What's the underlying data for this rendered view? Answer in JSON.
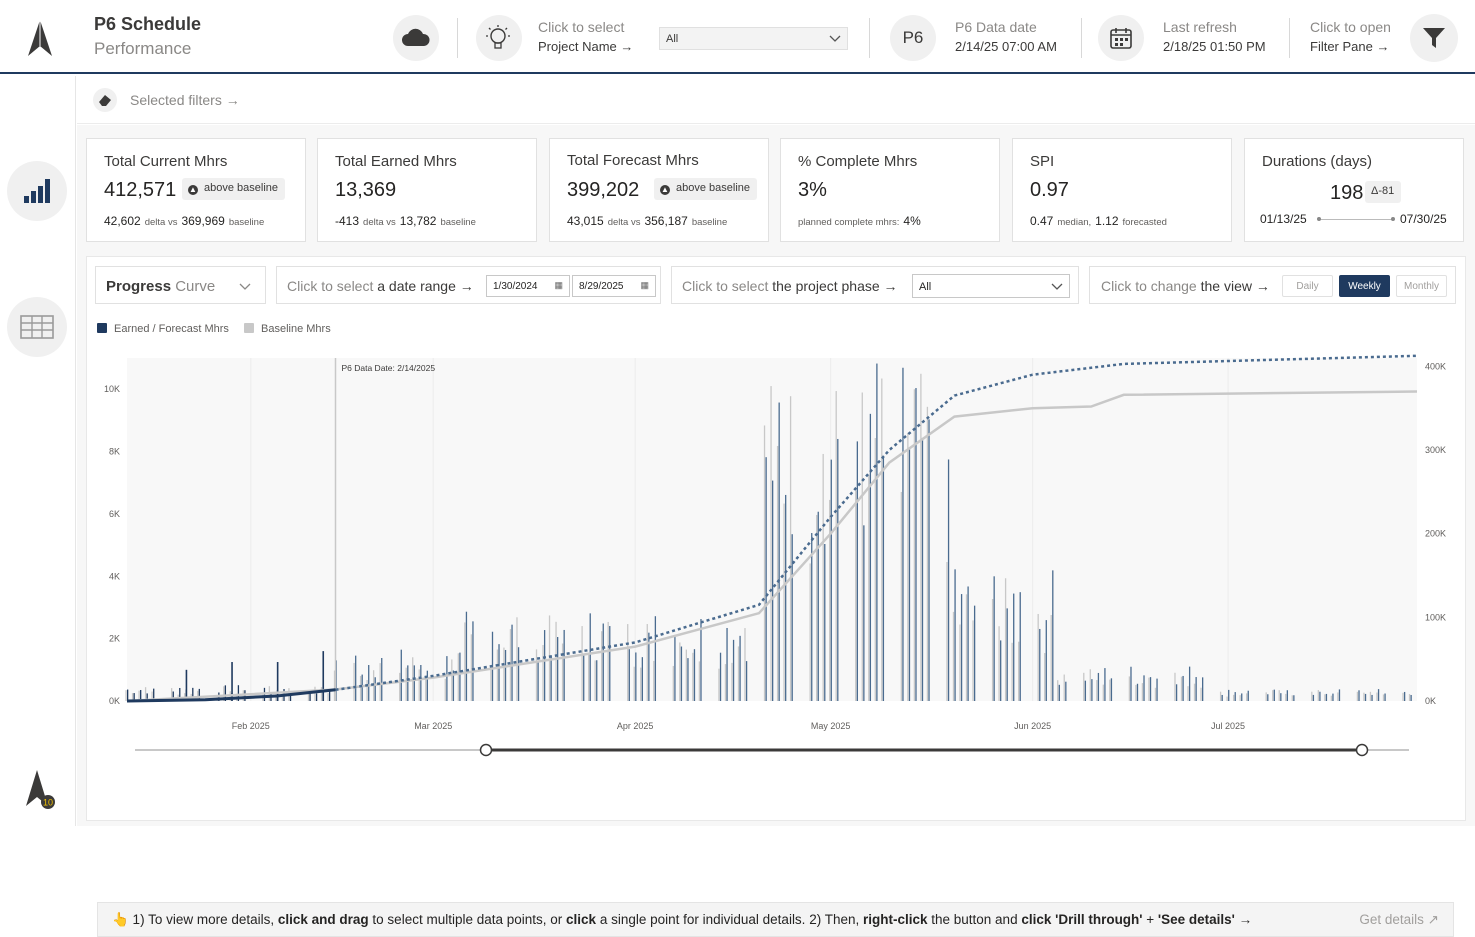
{
  "header": {
    "title_line1": "P6 Schedule",
    "title_line2": "Performance",
    "project_select_label1": "Click to select",
    "project_select_label2": "Project Name →",
    "project_select_value": "All",
    "p6_badge": "P6",
    "data_date_label": "P6 Data date",
    "data_date_value": "2/14/25 07:00 AM",
    "last_refresh_label": "Last refresh",
    "last_refresh_value": "2/18/25 01:50 PM",
    "filter_label1": "Click to open",
    "filter_label2": "Filter Pane →"
  },
  "filters": {
    "label": "Selected filters →"
  },
  "kpis": {
    "current": {
      "title": "Total Current Mhrs",
      "value": "412,571",
      "badge": "above baseline",
      "delta": "42,602",
      "delta_label": "delta vs",
      "baseline": "369,969",
      "baseline_label": "baseline"
    },
    "earned": {
      "title": "Total Earned Mhrs",
      "value": "13,369",
      "delta": "-413",
      "delta_label": "delta vs",
      "baseline": "13,782",
      "baseline_label": "baseline"
    },
    "forecast": {
      "title": "Total Forecast Mhrs",
      "value": "399,202",
      "badge": "above baseline",
      "delta": "43,015",
      "delta_label": "delta vs",
      "baseline": "356,187",
      "baseline_label": "baseline"
    },
    "complete": {
      "title": "% Complete Mhrs",
      "value": "3%",
      "sub_label": "planned complete mhrs:",
      "sub_value": "4%"
    },
    "spi": {
      "title": "SPI",
      "value": "0.97",
      "median": "0.47",
      "median_label": "median,",
      "forecasted": "1.12",
      "forecasted_label": "forecasted"
    },
    "durations": {
      "title": "Durations (days)",
      "value": "198",
      "badge": "Δ-81",
      "start": "01/13/25",
      "end": "07/30/25"
    }
  },
  "controls": {
    "view_type_bold": "Progress",
    "view_type_light": "Curve",
    "date_range_light": "Click to select",
    "date_range_bold": "a date range →",
    "date_start": "1/30/2024",
    "date_end": "8/29/2025",
    "phase_light": "Click to select",
    "phase_bold": "the project phase →",
    "phase_value": "All",
    "view_light": "Click to change",
    "view_bold": "the view →",
    "view_options": [
      "Daily",
      "Weekly",
      "Monthly"
    ],
    "view_selected": "Weekly"
  },
  "colors": {
    "earned": "#1f3a5f",
    "forecast_line": "#4a6b8f",
    "baseline": "#c8c8c8",
    "accent": "#1f3a5f"
  },
  "chart_data": {
    "type": "bar",
    "legend": [
      {
        "name": "Earned / Forecast Mhrs",
        "color": "#1f3a5f"
      },
      {
        "name": "Baseline Mhrs",
        "color": "#c8c8c8"
      }
    ],
    "annotation": "P6 Data Date: 2/14/2025",
    "x_tick_labels": [
      "Feb 2025",
      "Mar 2025",
      "Apr 2025",
      "May 2025",
      "Jun 2025",
      "Jul 2025"
    ],
    "x_ticks": [
      "2025-02-01",
      "2025-03-01",
      "2025-04-01",
      "2025-05-01",
      "2025-06-01",
      "2025-07-01"
    ],
    "x_range": [
      "2025-01-13",
      "2025-07-30"
    ],
    "data_date": "2025-02-14",
    "y_left": {
      "ticks": [
        0,
        2000,
        4000,
        6000,
        8000,
        10000
      ],
      "tick_labels": [
        "0K",
        "2K",
        "4K",
        "6K",
        "8K",
        "10K"
      ],
      "range": [
        0,
        11000
      ]
    },
    "y_right": {
      "ticks": [
        0,
        100000,
        200000,
        300000,
        400000
      ],
      "tick_labels": [
        "0K",
        "100K",
        "200K",
        "300K",
        "400K"
      ],
      "range": [
        0,
        410000
      ]
    },
    "bar_regions": [
      {
        "start": "2025-01-13",
        "end": "2025-02-14",
        "value": 400,
        "spikes": [
          [
            "2025-01-22",
            1000
          ],
          [
            "2025-01-29",
            1250
          ],
          [
            "2025-02-05",
            1250
          ],
          [
            "2025-02-12",
            1600
          ]
        ]
      },
      {
        "start": "2025-02-14",
        "end": "2025-03-06",
        "value": 1300
      },
      {
        "start": "2025-03-06",
        "end": "2025-04-20",
        "value": 2300
      },
      {
        "start": "2025-04-20",
        "end": "2025-05-20",
        "value": 8800
      },
      {
        "start": "2025-05-20",
        "end": "2025-06-05",
        "value": 3300
      },
      {
        "start": "2025-06-05",
        "end": "2025-06-30",
        "value": 900
      },
      {
        "start": "2025-06-30",
        "end": "2025-07-30",
        "value": 300
      }
    ],
    "cumulative_earned": [
      [
        "2025-01-13",
        0
      ],
      [
        "2025-01-25",
        1500
      ],
      [
        "2025-02-05",
        6000
      ],
      [
        "2025-02-14",
        13369
      ]
    ],
    "cumulative_forecast": [
      [
        "2025-02-14",
        13369
      ],
      [
        "2025-03-01",
        30000
      ],
      [
        "2025-04-01",
        70000
      ],
      [
        "2025-04-20",
        115000
      ],
      [
        "2025-05-01",
        220000
      ],
      [
        "2025-05-10",
        300000
      ],
      [
        "2025-05-20",
        365000
      ],
      [
        "2025-06-01",
        390000
      ],
      [
        "2025-06-15",
        403000
      ],
      [
        "2025-07-30",
        412571
      ]
    ],
    "cumulative_baseline": [
      [
        "2025-01-13",
        0
      ],
      [
        "2025-02-14",
        13782
      ],
      [
        "2025-03-01",
        28000
      ],
      [
        "2025-04-01",
        65000
      ],
      [
        "2025-04-20",
        105000
      ],
      [
        "2025-05-01",
        200000
      ],
      [
        "2025-05-10",
        285000
      ],
      [
        "2025-05-20",
        340000
      ],
      [
        "2025-06-01",
        350000
      ],
      [
        "2025-06-10",
        352000
      ],
      [
        "2025-06-15",
        366000
      ],
      [
        "2025-07-30",
        369969
      ]
    ]
  },
  "info": {
    "part1": "👆 1) To view more details, ",
    "b1": "click and drag",
    "part2": " to select multiple data points, or ",
    "b2": "click",
    "part3": " a single point for individual details.  2) Then, ",
    "b3": "right-click",
    "part4": " the button and ",
    "b4": "click 'Drill through'",
    "part5": " + ",
    "b5": "'See details'",
    "part6": " →",
    "get_details": "Get details ↗"
  }
}
